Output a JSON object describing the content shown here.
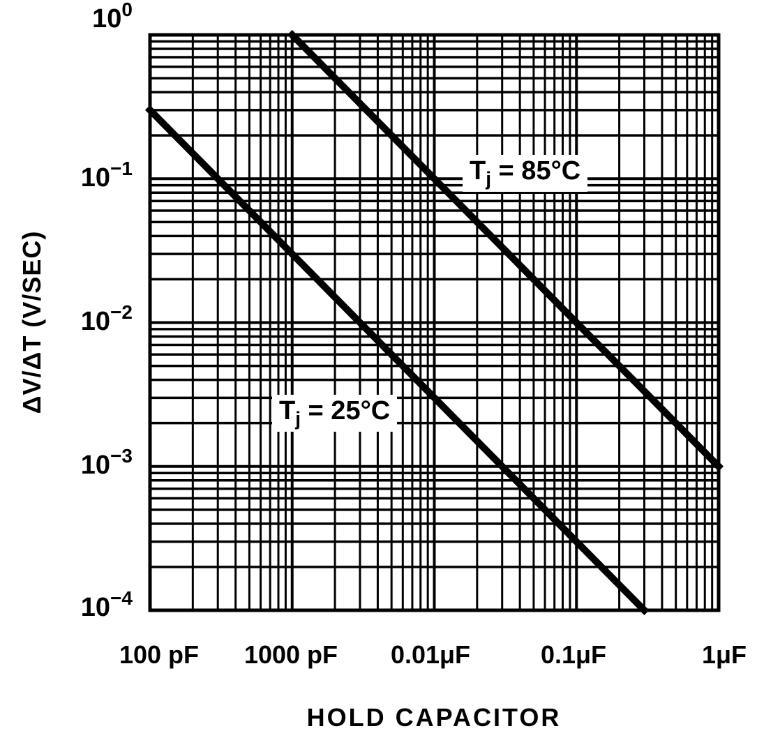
{
  "chart_data": {
    "type": "line",
    "title": "",
    "xlabel": "HOLD CAPACITOR",
    "ylabel": "ΔV/ΔT (V/SEC)",
    "xscale": "log",
    "yscale": "log",
    "xlim_pF": [
      100,
      1000000
    ],
    "ylim": [
      0.0001,
      1
    ],
    "grid": true,
    "x_tick_labels": [
      "100 pF",
      "1000 pF",
      "0.01μF",
      "0.1μF",
      "1μF"
    ],
    "y_tick_labels": [
      {
        "base": "10",
        "exp": "0"
      },
      {
        "base": "10",
        "exp": "−1"
      },
      {
        "base": "10",
        "exp": "−2"
      },
      {
        "base": "10",
        "exp": "−3"
      },
      {
        "base": "10",
        "exp": "−4"
      }
    ],
    "series": [
      {
        "name": "Tj = 85°C",
        "label_main": "T",
        "label_sub": "j",
        "label_rest": " = 85°C",
        "x_pF": [
          1000,
          1000000
        ],
        "y": [
          1.0,
          0.001
        ]
      },
      {
        "name": "Tj = 25°C",
        "label_main": "T",
        "label_sub": "j",
        "label_rest": " = 25°C",
        "x_pF": [
          100,
          300000
        ],
        "y": [
          0.3,
          0.0001
        ]
      }
    ],
    "legend_position": "inline annotations"
  }
}
